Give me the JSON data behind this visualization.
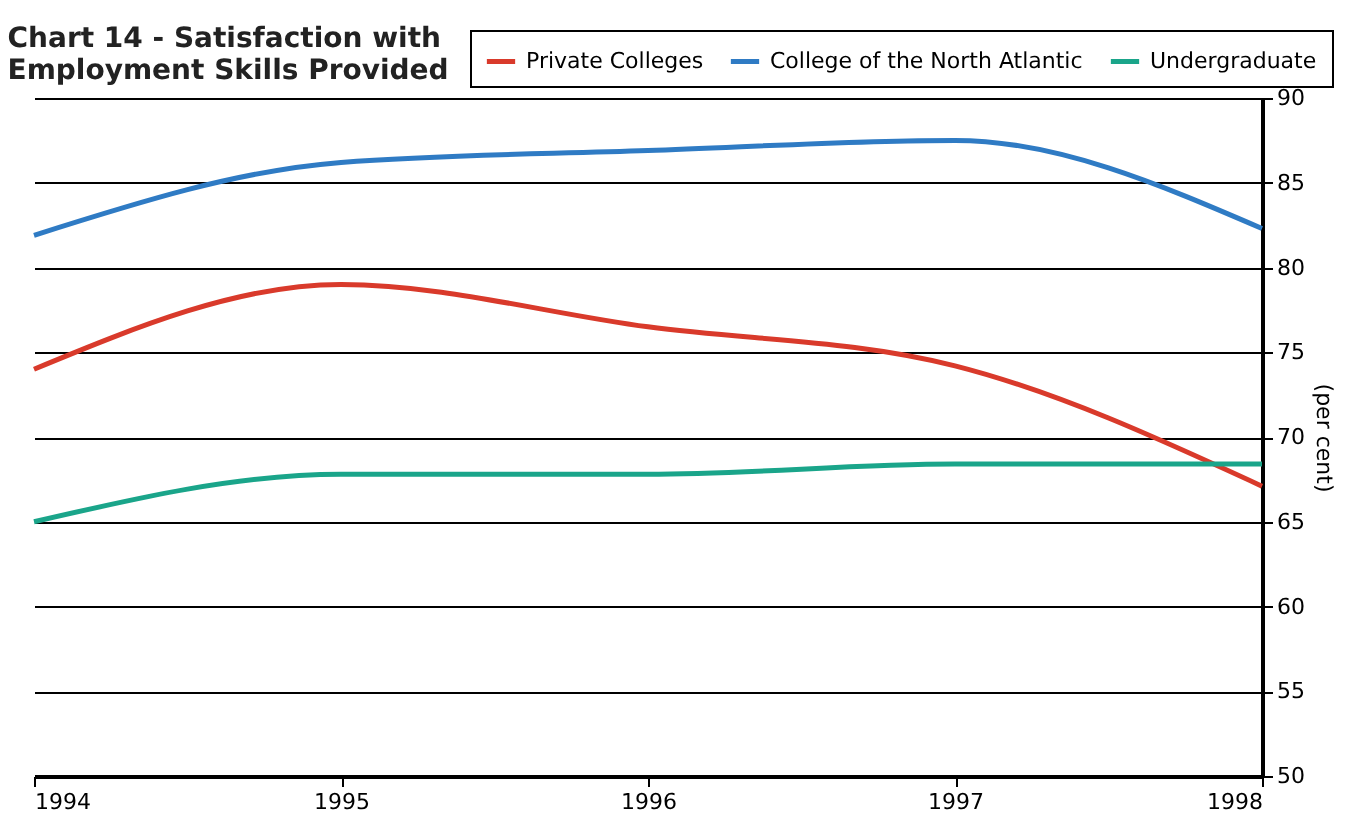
{
  "chart_data": {
    "type": "line",
    "title": "Chart 14 - Satisfaction with\nEmployment Skills Provided",
    "ylabel": "(per cent)",
    "x": [
      1994,
      1995,
      1996,
      1997,
      1998
    ],
    "series": [
      {
        "name": "Private Colleges",
        "color": "#d93a2b",
        "values": [
          74.0,
          79.0,
          76.5,
          74.2,
          67.1
        ]
      },
      {
        "name": "College of the North Atlantic",
        "color": "#2f7bc4",
        "values": [
          81.9,
          86.2,
          86.9,
          87.5,
          82.3
        ]
      },
      {
        "name": "Undergraduate",
        "color": "#1aa58a",
        "values": [
          65.0,
          67.8,
          67.8,
          68.4,
          68.4
        ]
      }
    ],
    "xlim": [
      1994,
      1998
    ],
    "xticks": [
      1994,
      1995,
      1996,
      1997,
      1998
    ],
    "ylim": [
      50,
      90
    ],
    "yticks": [
      50,
      55,
      60,
      65,
      70,
      75,
      80,
      85,
      90
    ],
    "grid": "y",
    "legend": "top",
    "marker": "none",
    "line_style": "solid"
  }
}
